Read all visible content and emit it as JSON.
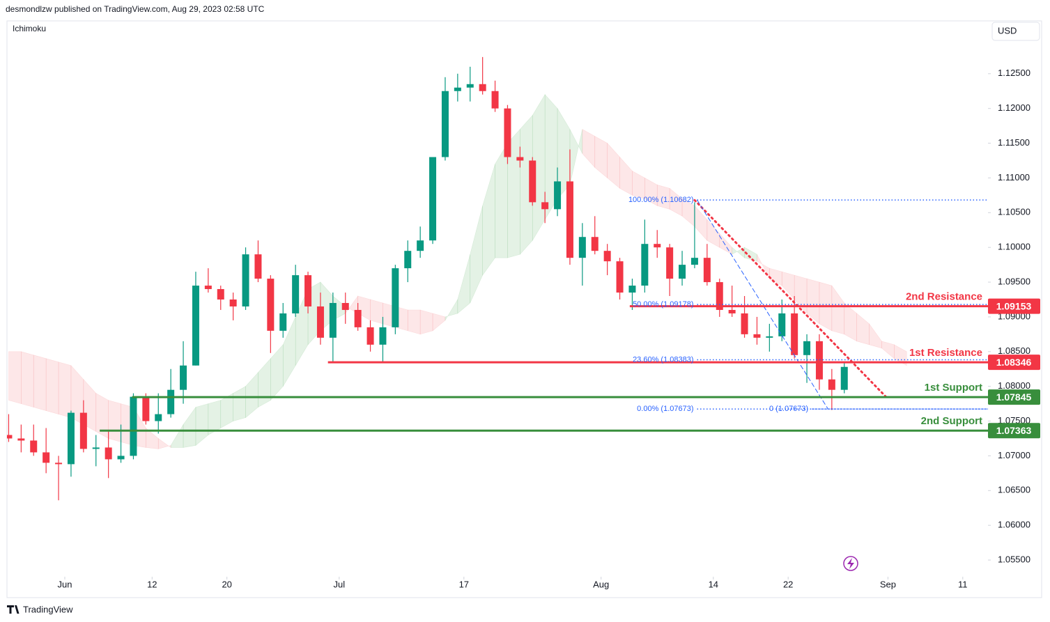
{
  "header": {
    "publisher": "desmondlzw published on TradingView.com, Aug 29, 2023 02:58 UTC",
    "indicator": "Ichimoku",
    "currency": "USD",
    "brand": "TradingView"
  },
  "chart_data": {
    "type": "candlestick",
    "xlim": [
      0,
      79
    ],
    "ylim": [
      1.0526,
      1.1326
    ],
    "xticks": [
      {
        "value": 5,
        "label": "Jun"
      },
      {
        "value": 12,
        "label": "12"
      },
      {
        "value": 18,
        "label": "20"
      },
      {
        "value": 27,
        "label": "Jul"
      },
      {
        "value": 37,
        "label": "17"
      },
      {
        "value": 48,
        "label": "Aug"
      },
      {
        "value": 57,
        "label": "14"
      },
      {
        "value": 63,
        "label": "22"
      },
      {
        "value": 71,
        "label": "Sep"
      },
      {
        "value": 77,
        "label": "11"
      }
    ],
    "yticks": [
      {
        "value": 1.055,
        "label": "1.05500"
      },
      {
        "value": 1.06,
        "label": "1.06000"
      },
      {
        "value": 1.065,
        "label": "1.06500"
      },
      {
        "value": 1.07,
        "label": "1.07000"
      },
      {
        "value": 1.075,
        "label": "1.07500"
      },
      {
        "value": 1.08,
        "label": "1.08000"
      },
      {
        "value": 1.085,
        "label": "1.08500"
      },
      {
        "value": 1.09,
        "label": "1.09000"
      },
      {
        "value": 1.095,
        "label": "1.09500"
      },
      {
        "value": 1.1,
        "label": "1.10000"
      },
      {
        "value": 1.105,
        "label": "1.10500"
      },
      {
        "value": 1.11,
        "label": "1.11000"
      },
      {
        "value": 1.115,
        "label": "1.11500"
      },
      {
        "value": 1.12,
        "label": "1.12000"
      },
      {
        "value": 1.125,
        "label": "1.12500"
      }
    ],
    "up_color": "#089981",
    "down_color": "#f23645",
    "open": [
      1.073,
      1.0725,
      1.0722,
      1.0705,
      1.069,
      1.0688,
      1.0762,
      1.071,
      1.0712,
      1.0695,
      1.07,
      1.0785,
      1.075,
      1.076,
      1.0795,
      1.083,
      1.0945,
      1.094,
      1.0925,
      1.0915,
      1.099,
      1.0955,
      1.088,
      1.0905,
      1.096,
      1.0915,
      1.087,
      1.092,
      1.091,
      1.0885,
      1.086,
      1.0885,
      1.097,
      1.0995,
      1.101,
      1.113,
      1.1225,
      1.123,
      1.1235,
      1.1225,
      1.12,
      1.113,
      1.1125,
      1.1065,
      1.1055,
      1.1095,
      1.0985,
      1.1015,
      1.0995,
      1.098,
      1.0935,
      1.0945,
      1.1005,
      1.1,
      1.0955,
      1.0975,
      1.0985,
      1.095,
      1.091,
      1.0905,
      1.0875,
      1.087,
      1.0872,
      1.0905,
      1.0845,
      1.0865,
      1.081,
      1.0795
    ],
    "high": [
      1.076,
      1.0745,
      1.0745,
      1.074,
      1.07,
      1.0765,
      1.078,
      1.073,
      1.0735,
      1.0745,
      1.079,
      1.079,
      1.079,
      1.0825,
      1.0865,
      1.0965,
      1.097,
      1.0945,
      1.0935,
      1.1,
      1.101,
      1.096,
      1.092,
      1.0975,
      1.0965,
      1.0935,
      1.0935,
      1.0935,
      1.092,
      1.0895,
      1.09,
      1.0975,
      1.101,
      1.103,
      1.113,
      1.1245,
      1.125,
      1.126,
      1.1274,
      1.124,
      1.1205,
      1.1145,
      1.113,
      1.108,
      1.1115,
      1.1141,
      1.1035,
      1.1045,
      1.1005,
      1.0985,
      1.0955,
      1.104,
      1.1025,
      1.1005,
      1.0995,
      1.1065,
      1.1005,
      1.0955,
      1.0945,
      1.093,
      1.09,
      1.089,
      1.0925,
      1.093,
      1.0875,
      1.0875,
      1.0825,
      1.0835
    ],
    "low": [
      1.072,
      1.0705,
      1.07,
      1.0675,
      1.0636,
      1.067,
      1.0705,
      1.0685,
      1.0668,
      1.069,
      1.0695,
      1.0745,
      1.0732,
      1.0755,
      1.0775,
      1.083,
      1.0935,
      1.091,
      1.0895,
      1.091,
      1.095,
      1.0848,
      1.087,
      1.09,
      1.0905,
      1.086,
      1.0835,
      1.089,
      1.088,
      1.085,
      1.0835,
      1.0875,
      1.095,
      1.0985,
      1.1005,
      1.1125,
      1.121,
      1.121,
      1.122,
      1.1195,
      1.112,
      1.1115,
      1.106,
      1.1035,
      1.1045,
      1.0975,
      1.0945,
      1.099,
      1.096,
      1.0925,
      1.091,
      1.0935,
      1.0985,
      1.093,
      1.0945,
      1.097,
      1.0945,
      1.09,
      1.09,
      1.087,
      1.086,
      1.085,
      1.0865,
      1.084,
      1.0805,
      1.0795,
      1.0766,
      1.079
    ],
    "close": [
      1.0725,
      1.0722,
      1.0705,
      1.069,
      1.0688,
      1.0762,
      1.071,
      1.0712,
      1.0695,
      1.07,
      1.0785,
      1.075,
      1.076,
      1.0795,
      1.083,
      1.0945,
      1.094,
      1.0925,
      1.0915,
      1.099,
      1.0955,
      1.088,
      1.0905,
      1.096,
      1.0915,
      1.087,
      1.092,
      1.091,
      1.0885,
      1.086,
      1.0885,
      1.097,
      1.0995,
      1.101,
      1.113,
      1.1225,
      1.123,
      1.1235,
      1.1225,
      1.12,
      1.113,
      1.1125,
      1.1065,
      1.1055,
      1.1095,
      1.0985,
      1.1015,
      1.0995,
      1.098,
      1.0935,
      1.0945,
      1.1005,
      1.1,
      1.0955,
      1.0975,
      1.0985,
      1.095,
      1.091,
      1.0905,
      1.0875,
      1.087,
      1.0872,
      1.0905,
      1.0845,
      1.0865,
      1.081,
      1.0795,
      1.0828
    ],
    "cloud": {
      "bull_color": "rgba(67,160,71,0.14)",
      "bear_color": "rgba(242,54,69,0.12)",
      "span_a": [
        1.078,
        1.0775,
        1.077,
        1.0765,
        1.076,
        1.0755,
        1.0745,
        1.0735,
        1.0725,
        1.072,
        1.0715,
        1.0712,
        1.071,
        1.0715,
        1.0745,
        1.077,
        1.0775,
        1.078,
        1.079,
        1.08,
        1.082,
        1.084,
        1.086,
        1.09,
        1.094,
        1.095,
        1.093,
        1.0915,
        1.0905,
        1.0895,
        1.089,
        1.0885,
        1.088,
        1.0875,
        1.088,
        1.0895,
        1.0925,
        1.099,
        1.106,
        1.112,
        1.115,
        1.117,
        1.119,
        1.122,
        1.12,
        1.117,
        1.1135,
        1.1115,
        1.11,
        1.1085,
        1.1075,
        1.107,
        1.106,
        1.1055,
        1.1045,
        1.103,
        1.101,
        1.1,
        1.099,
        1.1,
        1.099,
        1.0955,
        1.0945,
        1.0925,
        1.0905,
        1.089,
        1.088,
        1.0875,
        1.0865,
        1.086,
        1.0855,
        1.084,
        1.083
      ],
      "span_b": [
        1.085,
        1.085,
        1.0845,
        1.084,
        1.0835,
        1.083,
        1.081,
        1.079,
        1.078,
        1.0775,
        1.077,
        1.074,
        1.0725,
        1.0712,
        1.0712,
        1.0715,
        1.073,
        1.074,
        1.075,
        1.0755,
        1.077,
        1.078,
        1.08,
        1.083,
        1.086,
        1.088,
        1.0895,
        1.0905,
        1.093,
        1.0925,
        1.092,
        1.0915,
        1.091,
        1.091,
        1.0905,
        1.09,
        1.0905,
        1.092,
        1.096,
        1.0985,
        1.0985,
        1.099,
        1.101,
        1.104,
        1.107,
        1.109,
        1.117,
        1.116,
        1.115,
        1.113,
        1.111,
        1.11,
        1.109,
        1.1085,
        1.107,
        1.106,
        1.104,
        1.102,
        1.1,
        1.0985,
        1.098,
        1.097,
        1.0965,
        1.096,
        1.0955,
        1.095,
        1.0945,
        1.092,
        1.0905,
        1.089,
        1.0865,
        1.086,
        1.085
      ]
    },
    "levels": [
      {
        "name": "2nd Resistance",
        "value": 1.09153,
        "from": 50.3,
        "color": "#f23645"
      },
      {
        "name": "1st Resistance",
        "value": 1.08346,
        "from": 26.1,
        "color": "#f23645"
      },
      {
        "name": "1st Support",
        "value": 1.07845,
        "from": 10.4,
        "color": "#388e3c"
      },
      {
        "name": "2nd Support",
        "value": 1.07363,
        "from": 7.8,
        "color": "#388e3c"
      }
    ],
    "fib": {
      "from": 55.7,
      "color": "#2962ff",
      "levels": [
        {
          "value": 1.10682,
          "label": "100.00% (1.10682)"
        },
        {
          "value": 1.09178,
          "label": "50.00% (1.09178)"
        },
        {
          "value": 1.08383,
          "label": "23.60% (1.08383)"
        },
        {
          "value": 1.07673,
          "label": "0.00% (1.07673)"
        }
      ]
    },
    "fib2": {
      "from": 64.9,
      "color": "#2962ff",
      "levels": [
        {
          "value": 1.07673,
          "label": "0 (1.07673)"
        }
      ]
    },
    "trendlines": [
      {
        "color": "#f23645",
        "style": "dotted",
        "x": [
          55.5,
          71.0
        ],
        "y": [
          1.1068,
          1.0782
        ]
      },
      {
        "color": "#2962ff",
        "style": "dashed",
        "x": [
          55.7,
          66.2
        ],
        "y": [
          1.10682,
          1.07673
        ]
      }
    ]
  }
}
